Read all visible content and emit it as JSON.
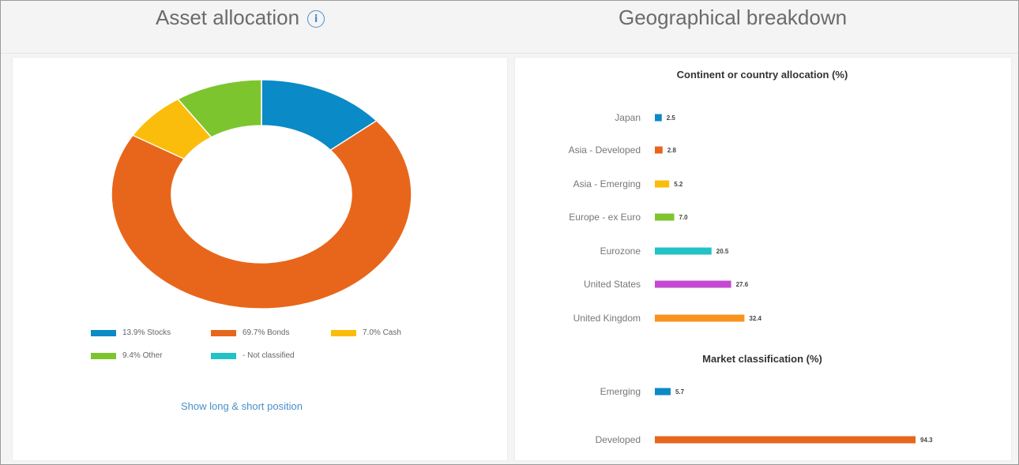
{
  "left_section": {
    "title": "Asset allocation",
    "info_icon": "i",
    "show_positions_link": "Show long & short position"
  },
  "right_section": {
    "title": "Geographical breakdown"
  },
  "colors": {
    "blue": "#0a8ac7",
    "orange": "#e8661b",
    "yellow": "#fbbd0b",
    "green": "#7dc52e",
    "cyan": "#22c2c6",
    "purple": "#c449d1",
    "light_orange": "#f7941d"
  },
  "chart_data": [
    {
      "type": "pie",
      "donut": true,
      "slices": [
        {
          "label": "Stocks",
          "value": 13.9,
          "color": "#0a8ac7"
        },
        {
          "label": "Bonds",
          "value": 69.7,
          "color": "#e8661b"
        },
        {
          "label": "Cash",
          "value": 7.0,
          "color": "#fbbd0b"
        },
        {
          "label": "Other",
          "value": 9.4,
          "color": "#7dc52e"
        },
        {
          "label": "Not classified",
          "value": 0,
          "color": "#22c2c6"
        }
      ],
      "legend": [
        {
          "text": "13.9% Stocks",
          "color": "#0a8ac7"
        },
        {
          "text": "69.7% Bonds",
          "color": "#e8661b"
        },
        {
          "text": "7.0% Cash",
          "color": "#fbbd0b"
        },
        {
          "text": "9.4% Other",
          "color": "#7dc52e"
        },
        {
          "text": "- Not classified",
          "color": "#22c2c6"
        }
      ],
      "legend_placement": "bottom"
    },
    {
      "type": "bar",
      "orientation": "horizontal",
      "title": "Continent or country allocation (%)",
      "categories": [
        "Japan",
        "Asia - Developed",
        "Asia - Emerging",
        "Europe - ex Euro",
        "Eurozone",
        "United States",
        "United Kingdom"
      ],
      "values": [
        2.5,
        2.8,
        5.2,
        7.0,
        20.5,
        27.6,
        32.4
      ],
      "labels": [
        "2.5",
        "2.8",
        "5.2",
        "7.0",
        "20.5",
        "27.6",
        "32.4"
      ],
      "colors": [
        "#0a8ac7",
        "#e8661b",
        "#fbbd0b",
        "#7dc52e",
        "#22c2c6",
        "#c449d1",
        "#f7941d"
      ],
      "xlim": [
        0,
        100
      ],
      "grid": false
    },
    {
      "type": "bar",
      "orientation": "horizontal",
      "title": "Market classification (%)",
      "categories": [
        "Emerging",
        "Developed"
      ],
      "values": [
        5.7,
        94.3
      ],
      "labels": [
        "5.7",
        "94.3"
      ],
      "colors": [
        "#0a8ac7",
        "#e8661b"
      ],
      "xlim": [
        0,
        100
      ],
      "grid": false
    }
  ]
}
